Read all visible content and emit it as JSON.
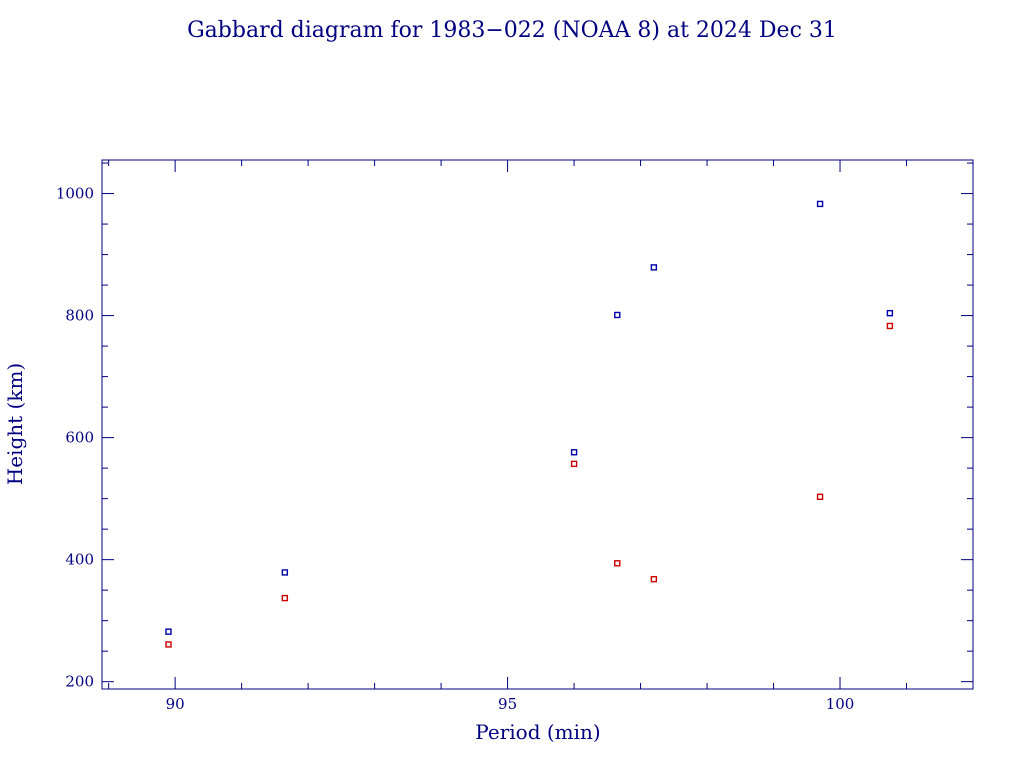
{
  "chart_data": {
    "type": "scatter",
    "title": "Gabbard diagram for 1983−022 (NOAA 8) at 2024 Dec 31",
    "xlabel": "Period (min)",
    "ylabel": "Height (km)",
    "xlim": [
      88.9,
      102.0
    ],
    "ylim": [
      188,
      1055
    ],
    "x_ticks": [
      90,
      95,
      100
    ],
    "y_ticks": [
      200,
      400,
      600,
      800,
      1000
    ],
    "x_minor_step": 1,
    "y_minor_step": 50,
    "grid": false,
    "colors": {
      "axes": "#000080",
      "text": "#000080",
      "apogee": "#0000aa",
      "perigee": "#cc0000"
    },
    "series": [
      {
        "x": [
          89.9,
          91.65,
          96.0,
          96.65,
          97.2,
          99.7,
          100.75
        ],
        "y": [
          282,
          379,
          576,
          801,
          879,
          983,
          804
        ]
      },
      {
        "x": [
          89.9,
          91.65,
          96.0,
          96.65,
          97.2,
          99.7,
          100.75
        ],
        "y": [
          261,
          337,
          557,
          394,
          368,
          503,
          783
        ]
      }
    ]
  }
}
